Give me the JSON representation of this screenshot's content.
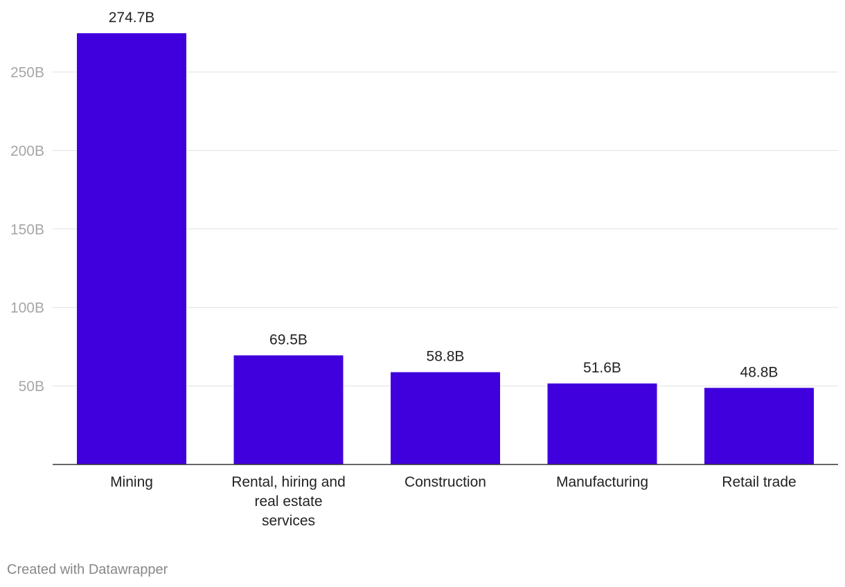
{
  "chart_data": {
    "type": "bar",
    "categories": [
      [
        "Mining"
      ],
      [
        "Rental, hiring and",
        "real estate",
        "services"
      ],
      [
        "Construction"
      ],
      [
        "Manufacturing"
      ],
      [
        "Retail trade"
      ]
    ],
    "values": [
      274.7,
      69.5,
      58.8,
      51.6,
      48.8
    ],
    "value_labels": [
      "274.7B",
      "69.5B",
      "58.8B",
      "51.6B",
      "48.8B"
    ],
    "y_ticks": [
      50,
      100,
      150,
      200,
      250
    ],
    "y_tick_labels": [
      "50B",
      "100B",
      "150B",
      "200B",
      "250B"
    ],
    "ylim": [
      0,
      274.7
    ],
    "grid": true,
    "bar_color": "#4000dd",
    "title": "",
    "xlabel": "",
    "ylabel": ""
  },
  "footer": {
    "credit": "Created with Datawrapper"
  }
}
